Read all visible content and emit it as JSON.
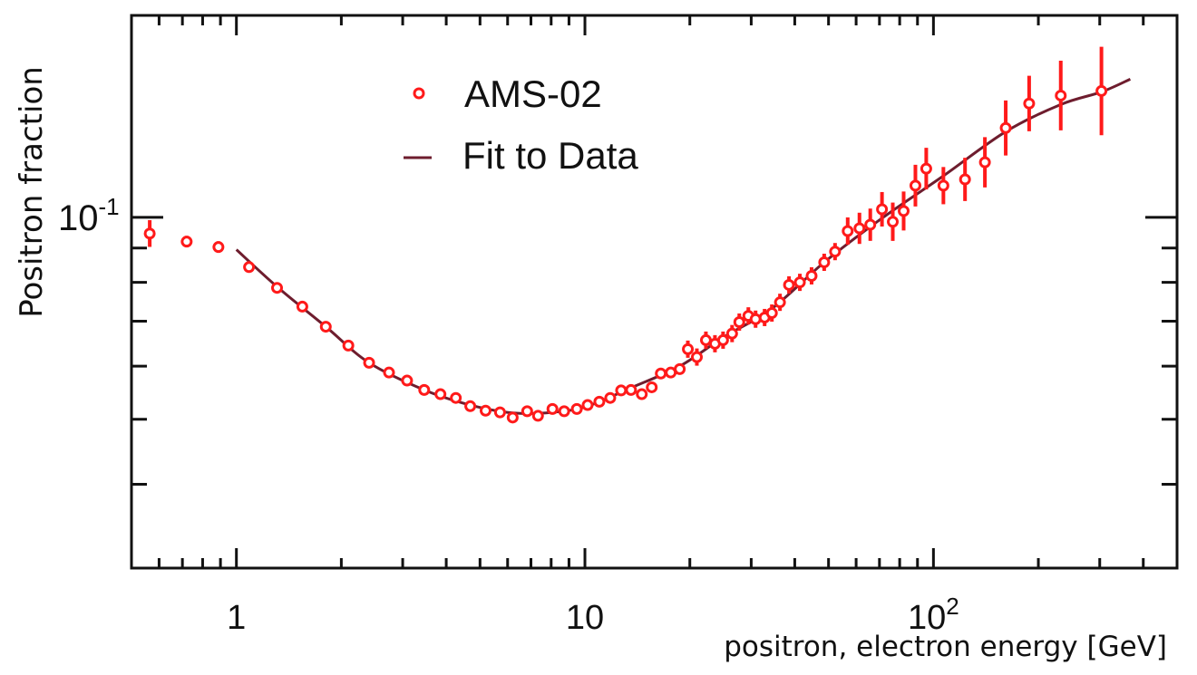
{
  "chart_data": {
    "type": "scatter",
    "title": "",
    "xlabel": "positron, electron energy [GeV]",
    "ylabel": "Positron fraction",
    "x_scale": "log",
    "y_scale": "log",
    "xlim": [
      0.5,
      500
    ],
    "ylim": [
      0.03,
      0.2
    ],
    "x_tick_labels": [
      {
        "value": 1,
        "base": "1",
        "exp": ""
      },
      {
        "value": 10,
        "base": "10",
        "exp": ""
      },
      {
        "value": 100,
        "base": "10",
        "exp": "2"
      }
    ],
    "y_tick_labels": [
      {
        "value": 0.1,
        "base": "10",
        "exp": "-1"
      }
    ],
    "grid": false,
    "legend_position": "top-left",
    "series": [
      {
        "name": "AMS-02",
        "kind": "points-with-error-bars",
        "color": "#ff1a1a",
        "x": [
          0.564,
          0.72,
          0.888,
          1.087,
          1.308,
          1.546,
          1.805,
          2.095,
          2.403,
          2.741,
          3.088,
          3.458,
          3.85,
          4.262,
          4.688,
          5.188,
          5.707,
          6.205,
          6.828,
          7.334,
          8.069,
          8.719,
          9.478,
          10.18,
          11.0,
          11.82,
          12.7,
          13.56,
          14.56,
          15.55,
          16.51,
          17.63,
          18.71,
          19.74,
          20.95,
          22.24,
          23.61,
          24.91,
          26.44,
          27.73,
          29.44,
          30.88,
          32.78,
          34.39,
          36.28,
          38.51,
          41.37,
          44.7,
          48.59,
          52.2,
          56.75,
          61.33,
          65.88,
          71.18,
          76.44,
          82.13,
          88.77,
          95.35,
          106.8,
          123.2,
          140.5,
          161.2,
          188.2,
          231.9,
          303.4
        ],
        "y": [
          0.0946,
          0.092,
          0.0903,
          0.0843,
          0.0785,
          0.0736,
          0.0687,
          0.0644,
          0.0607,
          0.0587,
          0.0571,
          0.0553,
          0.0545,
          0.0538,
          0.0523,
          0.0515,
          0.0512,
          0.0503,
          0.0514,
          0.0506,
          0.0518,
          0.0514,
          0.0518,
          0.0525,
          0.0531,
          0.0538,
          0.0552,
          0.0553,
          0.0545,
          0.0558,
          0.0585,
          0.0587,
          0.0594,
          0.0636,
          0.0619,
          0.0656,
          0.0648,
          0.0656,
          0.0671,
          0.0698,
          0.0713,
          0.0705,
          0.0709,
          0.072,
          0.0747,
          0.0793,
          0.08,
          0.0818,
          0.0857,
          0.0889,
          0.0954,
          0.0963,
          0.0975,
          0.1028,
          0.0985,
          0.1022,
          0.1115,
          0.1182,
          0.1115,
          0.1139,
          0.1208,
          0.1359,
          0.1478,
          0.1519,
          0.1543
        ],
        "yerr_rel": [
          0.047,
          0.02,
          0.02,
          0.012,
          0.012,
          0.012,
          0.012,
          0.012,
          0.012,
          0.012,
          0.012,
          0.012,
          0.012,
          0.012,
          0.012,
          0.012,
          0.012,
          0.012,
          0.012,
          0.012,
          0.012,
          0.012,
          0.012,
          0.012,
          0.012,
          0.012,
          0.012,
          0.012,
          0.012,
          0.012,
          0.012,
          0.012,
          0.012,
          0.03,
          0.03,
          0.03,
          0.03,
          0.03,
          0.03,
          0.03,
          0.03,
          0.03,
          0.03,
          0.03,
          0.03,
          0.03,
          0.03,
          0.03,
          0.03,
          0.03,
          0.048,
          0.055,
          0.057,
          0.061,
          0.068,
          0.069,
          0.074,
          0.074,
          0.066,
          0.077,
          0.09,
          0.099,
          0.1,
          0.127,
          0.164
        ]
      },
      {
        "name": "Fit to Data",
        "kind": "line",
        "color": "#6e1d2e",
        "x": [
          1,
          1.308,
          1.805,
          2.403,
          3.458,
          4.688,
          6.205,
          8.069,
          10.18,
          13.56,
          18.71,
          24.91,
          34.39,
          48.59,
          71.18,
          106.8,
          161.2,
          231.9,
          303.4,
          367.1
        ],
        "y": [
          0.0895,
          0.0788,
          0.0687,
          0.0607,
          0.0553,
          0.0525,
          0.0511,
          0.0512,
          0.0523,
          0.0557,
          0.06,
          0.0662,
          0.0731,
          0.0857,
          0.0997,
          0.1153,
          0.1342,
          0.1473,
          0.1538,
          0.1607
        ]
      }
    ]
  }
}
